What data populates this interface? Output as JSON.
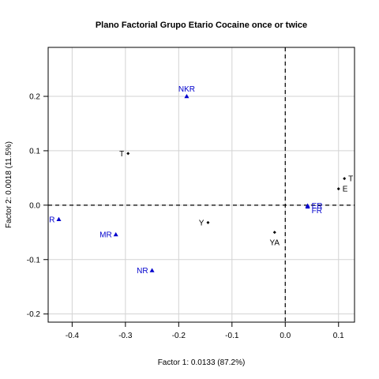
{
  "chart_data": {
    "type": "scatter",
    "title": "Plano Factorial Grupo Etario Cocaine once or twice",
    "xlabel": "Factor 1: 0.0133 (87.2%)",
    "ylabel": "Factor 2: 0.0018 (11.5%)",
    "xlim": [
      -0.445,
      0.13
    ],
    "ylim": [
      -0.215,
      0.29
    ],
    "xticks": [
      -0.4,
      -0.3,
      -0.2,
      -0.1,
      0.0,
      0.1
    ],
    "xtick_labels": [
      "-0.4",
      "-0.3",
      "-0.2",
      "-0.1",
      "0.0",
      "0.1"
    ],
    "yticks": [
      -0.2,
      -0.1,
      0.0,
      0.1,
      0.2
    ],
    "ytick_labels": [
      "-0.2",
      "-0.1",
      "0.0",
      "0.1",
      "0.2"
    ],
    "grid": true,
    "reference_lines": {
      "x": 0,
      "y": 0,
      "style": "dashed"
    },
    "series": [
      {
        "marker": "diamond",
        "color": "#000000",
        "points": [
          {
            "label": "T",
            "x": -0.295,
            "y": 0.095,
            "label_pos": "left"
          },
          {
            "label": "T",
            "x": 0.111,
            "y": 0.049,
            "label_pos": "right"
          },
          {
            "label": "E",
            "x": 0.1,
            "y": 0.03,
            "label_pos": "right"
          },
          {
            "label": "Y",
            "x": -0.145,
            "y": -0.032,
            "label_pos": "left"
          },
          {
            "label": "YA",
            "x": -0.02,
            "y": -0.05,
            "label_pos": "below"
          }
        ]
      },
      {
        "marker": "triangle",
        "color": "#0000cd",
        "points": [
          {
            "label": "NKR",
            "x": -0.185,
            "y": 0.2,
            "label_pos": "above"
          },
          {
            "label": "R",
            "x": -0.425,
            "y": -0.026,
            "label_pos": "left"
          },
          {
            "label": "MR",
            "x": -0.318,
            "y": -0.054,
            "label_pos": "left"
          },
          {
            "label": "NR",
            "x": -0.25,
            "y": -0.12,
            "label_pos": "left"
          },
          {
            "label": "ER",
            "x": 0.042,
            "y": -0.001,
            "label_pos": "right"
          },
          {
            "label": "FR",
            "x": 0.042,
            "y": -0.003,
            "label_pos": "right-low"
          }
        ]
      }
    ]
  }
}
